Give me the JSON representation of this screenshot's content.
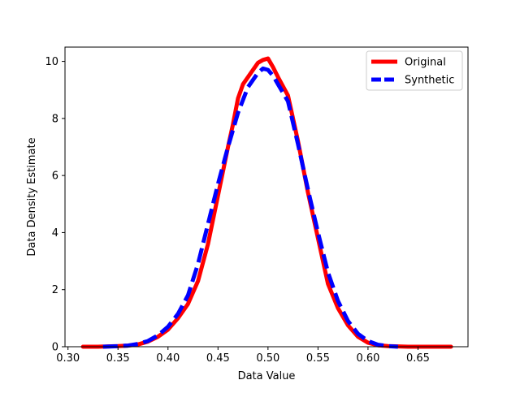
{
  "chart_data": {
    "type": "line",
    "title": "",
    "xlabel": "Data Value",
    "ylabel": "Data Density Estimate",
    "xlim": [
      0.297,
      0.7
    ],
    "ylim": [
      0,
      10.5
    ],
    "xticks": [
      "0.30",
      "0.35",
      "0.40",
      "0.45",
      "0.50",
      "0.55",
      "0.60",
      "0.65"
    ],
    "yticks": [
      "0",
      "2",
      "4",
      "6",
      "8",
      "10"
    ],
    "grid": false,
    "legend_position": "top-right",
    "series": [
      {
        "name": "Original",
        "color": "#ff0000",
        "style": "solid",
        "x": [
          0.315,
          0.33,
          0.34,
          0.35,
          0.36,
          0.37,
          0.38,
          0.39,
          0.4,
          0.41,
          0.42,
          0.43,
          0.44,
          0.45,
          0.46,
          0.465,
          0.47,
          0.475,
          0.48,
          0.485,
          0.49,
          0.495,
          0.5,
          0.505,
          0.51,
          0.52,
          0.53,
          0.54,
          0.55,
          0.56,
          0.57,
          0.58,
          0.59,
          0.6,
          0.61,
          0.62,
          0.63,
          0.64,
          0.65,
          0.66,
          0.683
        ],
        "y": [
          0.0,
          0.0,
          0.01,
          0.02,
          0.04,
          0.08,
          0.18,
          0.35,
          0.6,
          1.0,
          1.5,
          2.3,
          3.6,
          5.3,
          7.0,
          7.8,
          8.7,
          9.2,
          9.45,
          9.7,
          9.95,
          10.05,
          10.1,
          9.8,
          9.45,
          8.8,
          7.2,
          5.4,
          3.8,
          2.2,
          1.35,
          0.75,
          0.35,
          0.14,
          0.05,
          0.02,
          0.01,
          0.0,
          0.0,
          0.0,
          0.0
        ]
      },
      {
        "name": "Synthetic",
        "color": "#0000ff",
        "style": "dashed",
        "x": [
          0.335,
          0.35,
          0.36,
          0.37,
          0.38,
          0.39,
          0.4,
          0.41,
          0.42,
          0.43,
          0.44,
          0.45,
          0.46,
          0.47,
          0.48,
          0.49,
          0.495,
          0.5,
          0.505,
          0.51,
          0.52,
          0.53,
          0.54,
          0.55,
          0.56,
          0.57,
          0.58,
          0.59,
          0.6,
          0.61,
          0.62,
          0.63
        ],
        "y": [
          0.0,
          0.02,
          0.04,
          0.1,
          0.2,
          0.4,
          0.7,
          1.15,
          1.8,
          2.9,
          4.3,
          5.7,
          7.0,
          8.2,
          9.1,
          9.6,
          9.75,
          9.7,
          9.5,
          9.2,
          8.6,
          7.1,
          5.5,
          4.0,
          2.6,
          1.6,
          0.9,
          0.45,
          0.2,
          0.07,
          0.02,
          0.0
        ]
      }
    ]
  }
}
